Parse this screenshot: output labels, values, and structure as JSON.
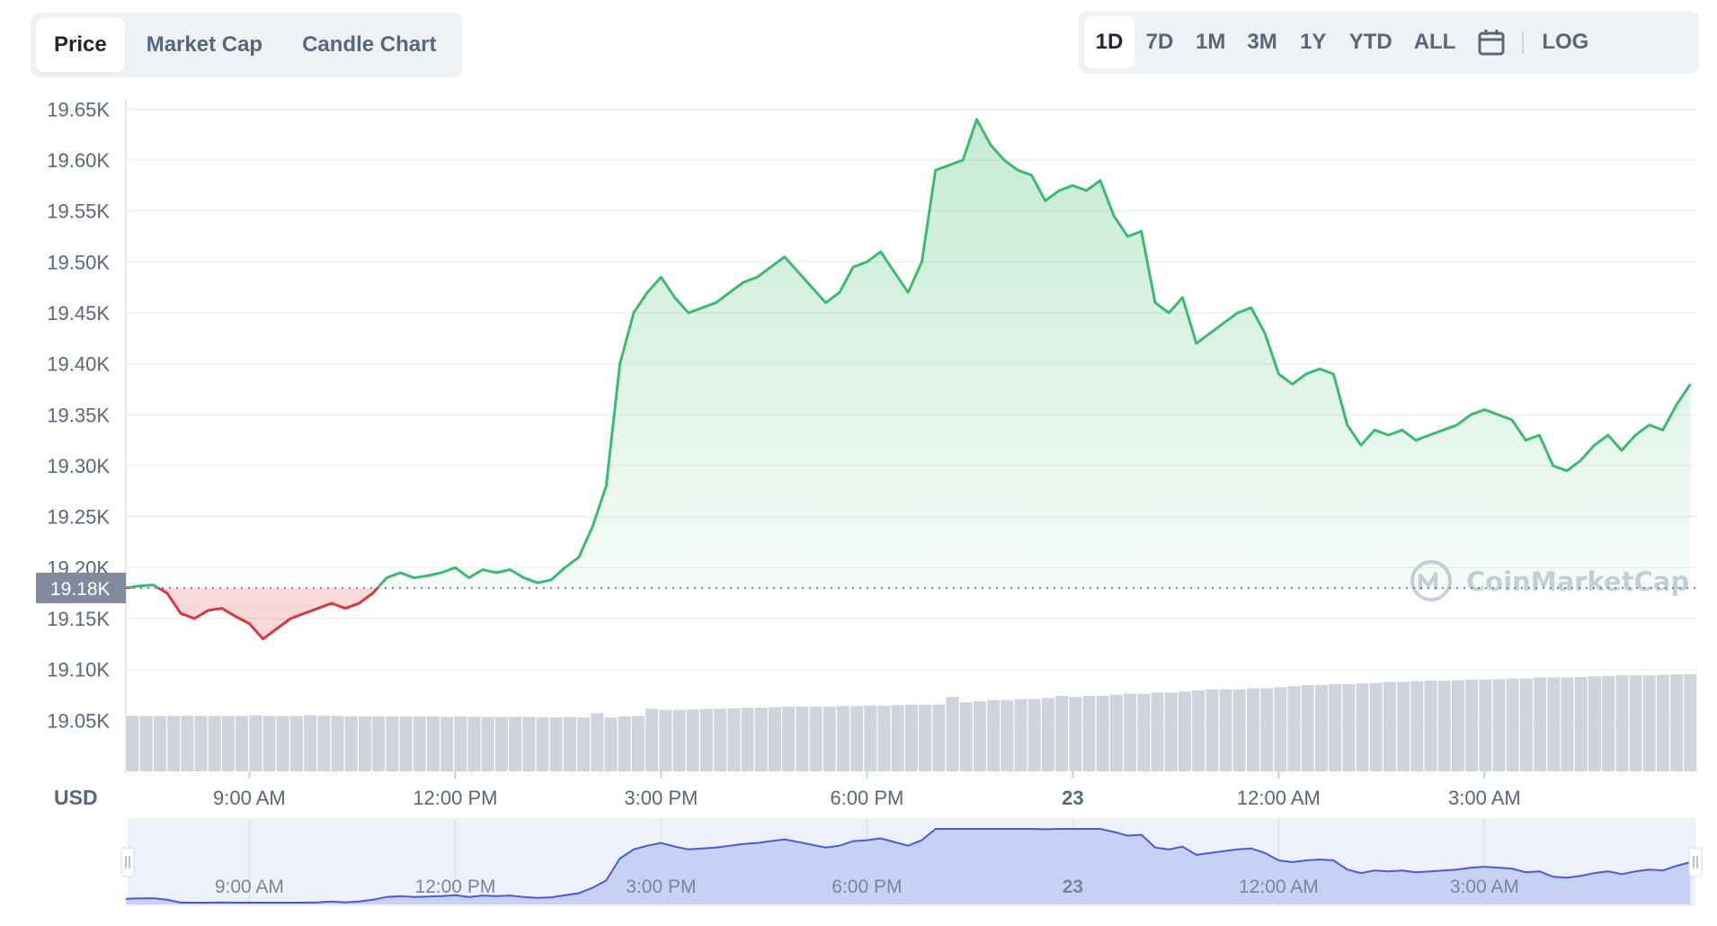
{
  "tabs": [
    {
      "label": "Price",
      "active": true
    },
    {
      "label": "Market Cap",
      "active": false
    },
    {
      "label": "Candle Chart",
      "active": false
    }
  ],
  "ranges": [
    {
      "label": "1D",
      "active": true
    },
    {
      "label": "7D",
      "active": false
    },
    {
      "label": "1M",
      "active": false
    },
    {
      "label": "3M",
      "active": false
    },
    {
      "label": "1Y",
      "active": false
    },
    {
      "label": "YTD",
      "active": false
    },
    {
      "label": "ALL",
      "active": false
    }
  ],
  "calendar_icon": "calendar-icon",
  "log_label": "LOG",
  "currency_label": "USD",
  "watermark": "CoinMarketCap",
  "watermark_icon": "coinmarketcap-logo-icon",
  "current_price_label": "19.18K",
  "colors": {
    "up": "#3dba6f",
    "down": "#d9363e",
    "up_fill": "#3dba6f",
    "volume": "#cfd3db",
    "navigator_fill": "#c9d0f5",
    "navigator_line": "#4a5ad9",
    "price_tag_bg": "#808a9d"
  },
  "chart_data": {
    "type": "area",
    "ylim": [
      19000,
      19660
    ],
    "yticks": [
      19050,
      19100,
      19150,
      19200,
      19250,
      19300,
      19350,
      19400,
      19450,
      19500,
      19550,
      19600,
      19650
    ],
    "ytick_labels": [
      "19.05K",
      "19.10K",
      "19.15K",
      "19.20K",
      "19.25K",
      "19.30K",
      "19.35K",
      "19.40K",
      "19.45K",
      "19.50K",
      "19.55K",
      "19.60K",
      "19.65K"
    ],
    "baseline": 19180,
    "x_unit": "hours",
    "xlim": [
      7.2,
      30.1
    ],
    "xticks": [
      9,
      12,
      15,
      18,
      21,
      24,
      27
    ],
    "xtick_labels": [
      "9:00 AM",
      "12:00 PM",
      "3:00 PM",
      "6:00 PM",
      "23",
      "12:00 AM",
      "3:00 AM"
    ],
    "xtick_bold": [
      false,
      false,
      false,
      false,
      true,
      false,
      false
    ],
    "series": [
      {
        "x": [
          7.2,
          7.4,
          7.6,
          7.8,
          8.0,
          8.2,
          8.4,
          8.6,
          8.8,
          9.0,
          9.2,
          9.4,
          9.6,
          9.8,
          10.0,
          10.2,
          10.4,
          10.6,
          10.8,
          11.0,
          11.2,
          11.4,
          11.6,
          11.8,
          12.0,
          12.2,
          12.4,
          12.6,
          12.8,
          13.0,
          13.2,
          13.4,
          13.6,
          13.8,
          14.0,
          14.2,
          14.4,
          14.6,
          14.8,
          15.0,
          15.2,
          15.4,
          15.6,
          15.8,
          16.0,
          16.2,
          16.4,
          16.6,
          16.8,
          17.0,
          17.2,
          17.4,
          17.6,
          17.8,
          18.0,
          18.2,
          18.4,
          18.6,
          18.8,
          19.0,
          19.2,
          19.4,
          19.6,
          19.8,
          20.0,
          20.2,
          20.4,
          20.6,
          20.8,
          21.0,
          21.2,
          21.4,
          21.6,
          21.8,
          22.0,
          22.2,
          22.4,
          22.6,
          22.8,
          23.0,
          23.2,
          23.4,
          23.6,
          23.8,
          24.0,
          24.2,
          24.4,
          24.6,
          24.8,
          25.0,
          25.2,
          25.4,
          25.6,
          25.8,
          26.0,
          26.2,
          26.4,
          26.6,
          26.8,
          27.0,
          27.2,
          27.4,
          27.6,
          27.8,
          28.0,
          28.2,
          28.4,
          28.6,
          28.8,
          29.0,
          29.2,
          29.4,
          29.6,
          29.8,
          30.0
        ],
        "y": [
          19180,
          19182,
          19183,
          19175,
          19155,
          19150,
          19158,
          19160,
          19152,
          19145,
          19130,
          19140,
          19150,
          19155,
          19160,
          19165,
          19160,
          19165,
          19175,
          19190,
          19195,
          19190,
          19192,
          19195,
          19200,
          19190,
          19198,
          19195,
          19198,
          19190,
          19185,
          19188,
          19200,
          19210,
          19240,
          19280,
          19400,
          19450,
          19470,
          19485,
          19465,
          19450,
          19455,
          19460,
          19470,
          19480,
          19485,
          19495,
          19505,
          19490,
          19475,
          19460,
          19470,
          19495,
          19500,
          19510,
          19490,
          19470,
          19500,
          19590,
          19595,
          19600,
          19640,
          19615,
          19600,
          19590,
          19585,
          19560,
          19570,
          19575,
          19570,
          19580,
          19545,
          19525,
          19530,
          19460,
          19450,
          19465,
          19420,
          19430,
          19440,
          19450,
          19455,
          19430,
          19390,
          19380,
          19390,
          19395,
          19390,
          19340,
          19320,
          19335,
          19330,
          19335,
          19325,
          19330,
          19335,
          19340,
          19350,
          19355,
          19350,
          19345,
          19325,
          19330,
          19300,
          19295,
          19305,
          19320,
          19330,
          19315,
          19330,
          19340,
          19335,
          19360,
          19380
        ]
      }
    ],
    "volume": [
      0.515,
      0.515,
      0.515,
      0.515,
      0.515,
      0.515,
      0.515,
      0.515,
      0.515,
      0.52,
      0.515,
      0.515,
      0.515,
      0.52,
      0.515,
      0.515,
      0.51,
      0.51,
      0.51,
      0.51,
      0.51,
      0.51,
      0.51,
      0.505,
      0.51,
      0.505,
      0.505,
      0.505,
      0.505,
      0.505,
      0.5,
      0.5,
      0.505,
      0.5,
      0.54,
      0.5,
      0.51,
      0.515,
      0.58,
      0.57,
      0.57,
      0.575,
      0.58,
      0.58,
      0.585,
      0.59,
      0.59,
      0.595,
      0.6,
      0.6,
      0.6,
      0.6,
      0.605,
      0.605,
      0.61,
      0.61,
      0.615,
      0.62,
      0.62,
      0.62,
      0.69,
      0.64,
      0.65,
      0.66,
      0.66,
      0.67,
      0.67,
      0.68,
      0.7,
      0.69,
      0.7,
      0.7,
      0.71,
      0.72,
      0.72,
      0.73,
      0.73,
      0.74,
      0.75,
      0.76,
      0.76,
      0.76,
      0.77,
      0.77,
      0.78,
      0.79,
      0.8,
      0.8,
      0.81,
      0.81,
      0.815,
      0.82,
      0.83,
      0.83,
      0.835,
      0.84,
      0.84,
      0.845,
      0.85,
      0.85,
      0.855,
      0.86,
      0.86,
      0.87,
      0.87,
      0.87,
      0.875,
      0.88,
      0.885,
      0.89,
      0.89,
      0.89,
      0.895,
      0.9,
      0.9
    ]
  }
}
